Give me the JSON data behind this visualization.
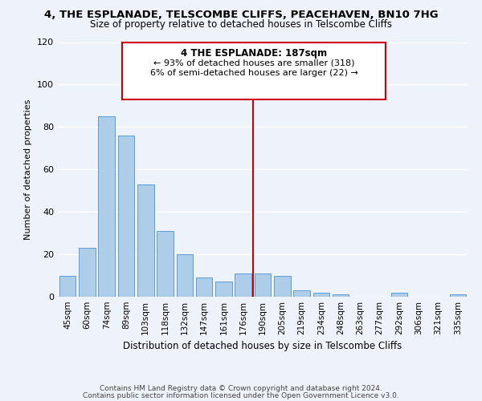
{
  "title": "4, THE ESPLANADE, TELSCOMBE CLIFFS, PEACEHAVEN, BN10 7HG",
  "subtitle": "Size of property relative to detached houses in Telscombe Cliffs",
  "xlabel": "Distribution of detached houses by size in Telscombe Cliffs",
  "ylabel": "Number of detached properties",
  "bar_labels": [
    "45sqm",
    "60sqm",
    "74sqm",
    "89sqm",
    "103sqm",
    "118sqm",
    "132sqm",
    "147sqm",
    "161sqm",
    "176sqm",
    "190sqm",
    "205sqm",
    "219sqm",
    "234sqm",
    "248sqm",
    "263sqm",
    "277sqm",
    "292sqm",
    "306sqm",
    "321sqm",
    "335sqm"
  ],
  "bar_values": [
    10,
    23,
    85,
    76,
    53,
    31,
    20,
    9,
    7,
    11,
    11,
    10,
    3,
    2,
    1,
    0,
    0,
    2,
    0,
    0,
    1
  ],
  "bar_color": "#aecde8",
  "bar_edge_color": "#5b9bd5",
  "ylim": [
    0,
    120
  ],
  "annotation_title": "4 THE ESPLANADE: 187sqm",
  "annotation_line1": "← 93% of detached houses are smaller (318)",
  "annotation_line2": "6% of semi-detached houses are larger (22) →",
  "footer_line1": "Contains HM Land Registry data © Crown copyright and database right 2024.",
  "footer_line2": "Contains public sector information licensed under the Open Government Licence v3.0.",
  "background_color": "#eef2fb",
  "grid_color": "#ffffff",
  "annotation_box_color": "#ffffff",
  "annotation_box_edge": "#cc0000",
  "property_line_color": "#cc0000",
  "title_fontsize": 9.5,
  "subtitle_fontsize": 8.5,
  "ylabel_fontsize": 8.0,
  "xlabel_fontsize": 8.5,
  "tick_fontsize": 7.5,
  "ytick_fontsize": 8.0,
  "footer_fontsize": 6.5,
  "annot_title_fontsize": 8.5,
  "annot_text_fontsize": 8.0
}
